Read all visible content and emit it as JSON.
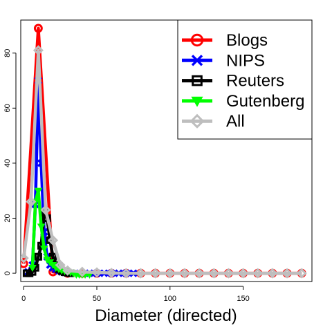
{
  "chart_data": {
    "type": "line",
    "title": "",
    "xlabel": "Diameter (directed)",
    "ylabel": "",
    "xlim": [
      -2,
      197
    ],
    "ylim": [
      -3,
      92
    ],
    "x_ticks": [
      0,
      50,
      100,
      150
    ],
    "y_ticks": [
      0,
      20,
      40,
      60,
      80
    ],
    "legend_position": "top-right",
    "series": [
      {
        "name": "Blogs",
        "color": "#ff0000",
        "marker": "circle",
        "x": [
          0,
          10,
          20,
          30,
          40,
          50,
          60,
          70,
          80,
          90,
          100,
          110,
          120,
          130,
          140,
          150,
          160,
          170,
          180,
          190
        ],
        "y": [
          3.5,
          89,
          0.5,
          0,
          0,
          0,
          0,
          0,
          0,
          0,
          0,
          0,
          0,
          0,
          0,
          0,
          0,
          0,
          0,
          0
        ]
      },
      {
        "name": "NIPS",
        "color": "#0000ff",
        "marker": "cross",
        "x": [
          3,
          6,
          8,
          10,
          12,
          14,
          16,
          18,
          20,
          22,
          24,
          26,
          28,
          30,
          35,
          40,
          45,
          50,
          55,
          60,
          65,
          70,
          75
        ],
        "y": [
          0.5,
          3,
          25,
          70,
          40,
          15,
          6,
          3,
          2,
          1.5,
          1,
          0.5,
          0.3,
          0.2,
          0,
          0,
          0,
          0,
          0,
          0,
          0,
          0,
          0
        ]
      },
      {
        "name": "Reuters",
        "color": "#000000",
        "marker": "square",
        "x": [
          2,
          4,
          6,
          8,
          10,
          12,
          14,
          16,
          18,
          20,
          22,
          24,
          26,
          28,
          30,
          32
        ],
        "y": [
          0,
          0,
          0.5,
          2,
          6,
          10,
          22,
          20,
          12,
          6,
          3,
          1.5,
          0.8,
          0.4,
          0.2,
          0
        ]
      },
      {
        "name": "Gutenberg",
        "color": "#00ff00",
        "marker": "triangle",
        "x": [
          6,
          8,
          10,
          12,
          14,
          16,
          18,
          20,
          22,
          24,
          26,
          28,
          30,
          32,
          34,
          36,
          38,
          40,
          42,
          45
        ],
        "y": [
          2,
          26,
          30,
          17,
          9,
          5,
          4,
          3,
          2,
          1.5,
          1,
          0.8,
          0.5,
          0.3,
          0,
          -0.5,
          -0.5,
          -0.5,
          -0.5,
          -0.5
        ]
      },
      {
        "name": "All",
        "color": "#bebebe",
        "marker": "diamond",
        "x": [
          0,
          5,
          10,
          15,
          20,
          25,
          30,
          40,
          50,
          60,
          70,
          80,
          90,
          100,
          110,
          120,
          130,
          140,
          150,
          160,
          170,
          180,
          190
        ],
        "y": [
          5.5,
          26,
          81,
          23,
          12,
          3,
          1,
          0.5,
          0.3,
          0.1,
          0,
          0,
          0,
          0,
          0,
          0,
          0,
          0,
          0,
          0,
          0,
          0,
          0
        ]
      }
    ]
  }
}
